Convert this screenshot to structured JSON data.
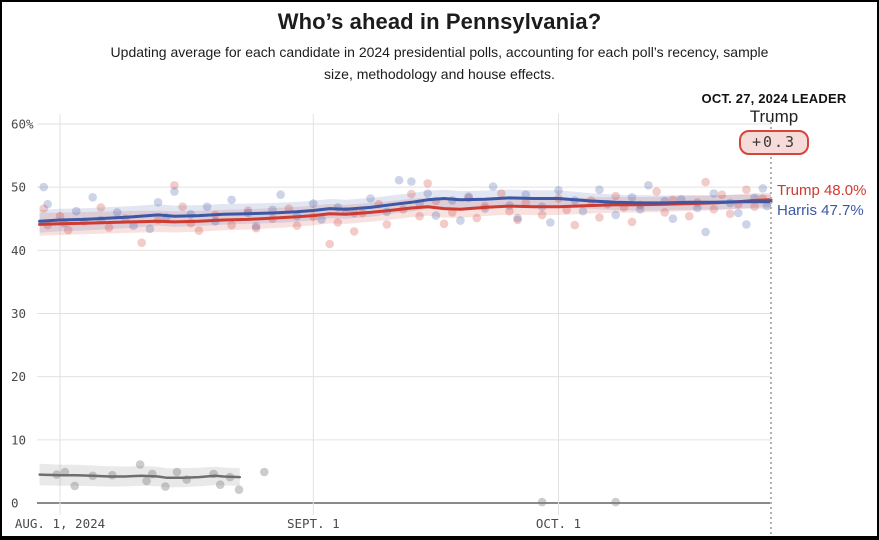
{
  "header": {
    "title": "Who’s ahead in Pennsylvania?",
    "subtitle": "Updating average for each candidate in 2024 presidential polls, accounting for each poll’s recency, sample size, methodology and house effects."
  },
  "leader": {
    "date_label": "OCT. 27, 2024 LEADER",
    "name": "Trump",
    "margin": "+0.3",
    "pill_background": "#f7dbd8",
    "pill_border": "#d6453d"
  },
  "end_labels": {
    "trump": "Trump 48.0%",
    "harris": "Harris 47.7%"
  },
  "colors": {
    "trump": "#cf3a31",
    "harris": "#3c57a5",
    "third_party": "#6e6e6e",
    "trump_dot": "#cf3a31",
    "harris_dot": "#3c57a5",
    "third_dot": "#808080",
    "grid": "#e2e2e2",
    "zero_axis": "#8a8a8a",
    "today_line": "#b0b0b0",
    "tick_text": "#4a4a4a"
  },
  "chart_data": {
    "type": "line",
    "title": "Who’s ahead in Pennsylvania?",
    "x_unit": "days since Aug. 1, 2024",
    "xlim": [
      -2.8,
      87
    ],
    "ylim": [
      0,
      62
    ],
    "grid": true,
    "end_marker_day": 87,
    "x_ticks": [
      {
        "day": 0,
        "label": "AUG. 1, 2024"
      },
      {
        "day": 31,
        "label": "SEPT. 1"
      },
      {
        "day": 61,
        "label": "OCT. 1"
      }
    ],
    "y_ticks": [
      {
        "v": 0,
        "label": "0"
      },
      {
        "v": 10,
        "label": "10"
      },
      {
        "v": 20,
        "label": "20"
      },
      {
        "v": 30,
        "label": "30"
      },
      {
        "v": 40,
        "label": "40"
      },
      {
        "v": 50,
        "label": "50"
      },
      {
        "v": 60,
        "label": "60%"
      }
    ],
    "series": [
      {
        "name": "Trump",
        "color": "#cf3a31",
        "band_start": 1.8,
        "band_end": 1.1,
        "width": 3,
        "points": [
          [
            -2.5,
            44.1
          ],
          [
            0,
            44.2
          ],
          [
            3,
            44.3
          ],
          [
            6,
            44.4
          ],
          [
            9,
            44.5
          ],
          [
            12,
            44.6
          ],
          [
            14,
            44.5
          ],
          [
            17,
            44.6
          ],
          [
            20,
            44.8
          ],
          [
            23,
            44.9
          ],
          [
            26,
            45.1
          ],
          [
            29,
            45.3
          ],
          [
            31,
            45.5
          ],
          [
            33,
            45.8
          ],
          [
            35,
            45.7
          ],
          [
            38,
            46.0
          ],
          [
            41,
            46.4
          ],
          [
            43,
            46.7
          ],
          [
            45,
            46.9
          ],
          [
            47,
            46.6
          ],
          [
            49,
            46.5
          ],
          [
            52,
            46.8
          ],
          [
            55,
            47.0
          ],
          [
            58,
            46.9
          ],
          [
            61,
            46.9
          ],
          [
            63,
            47.0
          ],
          [
            65,
            47.1
          ],
          [
            68,
            47.2
          ],
          [
            71,
            47.2
          ],
          [
            74,
            47.3
          ],
          [
            77,
            47.4
          ],
          [
            80,
            47.5
          ],
          [
            83,
            47.7
          ],
          [
            85,
            47.9
          ],
          [
            87,
            48.0
          ]
        ]
      },
      {
        "name": "Harris",
        "color": "#3c57a5",
        "band_start": 1.8,
        "band_end": 1.1,
        "width": 3,
        "points": [
          [
            -2.5,
            44.6
          ],
          [
            0,
            44.8
          ],
          [
            3,
            44.9
          ],
          [
            6,
            45.1
          ],
          [
            9,
            45.3
          ],
          [
            12,
            45.6
          ],
          [
            14,
            45.4
          ],
          [
            17,
            45.5
          ],
          [
            20,
            45.7
          ],
          [
            23,
            45.8
          ],
          [
            26,
            45.9
          ],
          [
            29,
            46.1
          ],
          [
            31,
            46.3
          ],
          [
            33,
            46.6
          ],
          [
            35,
            46.5
          ],
          [
            38,
            46.8
          ],
          [
            41,
            47.3
          ],
          [
            43,
            47.6
          ],
          [
            45,
            48.0
          ],
          [
            47,
            48.2
          ],
          [
            49,
            48.0
          ],
          [
            52,
            48.1
          ],
          [
            55,
            48.3
          ],
          [
            58,
            48.2
          ],
          [
            61,
            48.2
          ],
          [
            63,
            48.0
          ],
          [
            65,
            47.8
          ],
          [
            68,
            47.6
          ],
          [
            71,
            47.5
          ],
          [
            74,
            47.5
          ],
          [
            77,
            47.6
          ],
          [
            80,
            47.6
          ],
          [
            83,
            47.7
          ],
          [
            87,
            47.7
          ]
        ]
      },
      {
        "name": "Third party",
        "color": "#6e6e6e",
        "band_start": 1.7,
        "band_end": 1.4,
        "width": 2.5,
        "points": [
          [
            -2.5,
            4.5
          ],
          [
            0,
            4.4
          ],
          [
            2,
            4.4
          ],
          [
            4,
            4.3
          ],
          [
            6,
            4.2
          ],
          [
            8,
            4.2
          ],
          [
            10,
            4.3
          ],
          [
            12,
            4.2
          ],
          [
            13,
            4.0
          ],
          [
            15,
            4.0
          ],
          [
            17,
            4.1
          ],
          [
            19,
            4.3
          ],
          [
            20,
            4.2
          ],
          [
            22,
            4.1
          ]
        ]
      }
    ],
    "scatter": {
      "trump": [
        [
          -2,
          46.6
        ],
        [
          -1.5,
          44.0
        ],
        [
          0,
          45.4
        ],
        [
          1,
          43.2
        ],
        [
          3,
          44.6
        ],
        [
          5,
          46.8
        ],
        [
          6,
          43.6
        ],
        [
          8,
          45.0
        ],
        [
          10,
          41.2
        ],
        [
          12,
          44.8
        ],
        [
          14,
          50.3
        ],
        [
          15,
          46.9
        ],
        [
          16,
          44.3
        ],
        [
          17,
          43.1
        ],
        [
          19,
          45.6
        ],
        [
          21,
          44.0
        ],
        [
          23,
          46.3
        ],
        [
          24,
          43.5
        ],
        [
          26,
          45.0
        ],
        [
          28,
          46.6
        ],
        [
          29,
          43.9
        ],
        [
          31,
          45.3
        ],
        [
          33,
          41.0
        ],
        [
          34,
          44.4
        ],
        [
          35,
          46.2
        ],
        [
          36,
          43.0
        ],
        [
          37,
          45.9
        ],
        [
          39,
          47.3
        ],
        [
          40,
          44.1
        ],
        [
          42,
          46.5
        ],
        [
          43,
          48.9
        ],
        [
          44,
          45.4
        ],
        [
          45,
          50.6
        ],
        [
          46,
          47.8
        ],
        [
          47,
          44.2
        ],
        [
          48,
          46.0
        ],
        [
          50,
          48.3
        ],
        [
          51,
          45.1
        ],
        [
          52,
          47.0
        ],
        [
          54,
          49.0
        ],
        [
          55,
          46.2
        ],
        [
          56,
          44.8
        ],
        [
          57,
          47.5
        ],
        [
          59,
          45.6
        ],
        [
          61,
          48.2
        ],
        [
          62,
          46.4
        ],
        [
          63,
          44.0
        ],
        [
          65,
          47.9
        ],
        [
          66,
          45.2
        ],
        [
          68,
          48.6
        ],
        [
          69,
          46.8
        ],
        [
          70,
          44.5
        ],
        [
          71,
          47.2
        ],
        [
          73,
          49.3
        ],
        [
          74,
          46.0
        ],
        [
          75,
          48.0
        ],
        [
          77,
          45.4
        ],
        [
          78,
          47.6
        ],
        [
          79,
          50.8
        ],
        [
          80,
          46.5
        ],
        [
          81,
          48.8
        ],
        [
          82,
          45.8
        ],
        [
          83,
          47.3
        ],
        [
          84,
          49.6
        ],
        [
          85,
          46.9
        ],
        [
          86,
          48.2
        ]
      ],
      "harris": [
        [
          -2,
          50.0
        ],
        [
          -1.5,
          47.3
        ],
        [
          0.5,
          44.3
        ],
        [
          2,
          46.2
        ],
        [
          4,
          48.4
        ],
        [
          5,
          44.8
        ],
        [
          7,
          46.0
        ],
        [
          9,
          43.9
        ],
        [
          11,
          43.4
        ],
        [
          12,
          47.6
        ],
        [
          13,
          45.2
        ],
        [
          14,
          49.3
        ],
        [
          16,
          45.7
        ],
        [
          18,
          46.9
        ],
        [
          19,
          44.6
        ],
        [
          21,
          48.0
        ],
        [
          23,
          45.9
        ],
        [
          24,
          43.8
        ],
        [
          26,
          46.4
        ],
        [
          27,
          48.8
        ],
        [
          29,
          45.4
        ],
        [
          31,
          47.4
        ],
        [
          32,
          44.9
        ],
        [
          34,
          46.8
        ],
        [
          36,
          45.9
        ],
        [
          38,
          48.2
        ],
        [
          40,
          46.1
        ],
        [
          41.5,
          51.1
        ],
        [
          43,
          50.9
        ],
        [
          44,
          47.4
        ],
        [
          45,
          49.0
        ],
        [
          46,
          45.5
        ],
        [
          48,
          47.9
        ],
        [
          49,
          44.7
        ],
        [
          50,
          48.5
        ],
        [
          52,
          46.6
        ],
        [
          53,
          50.1
        ],
        [
          55,
          47.1
        ],
        [
          56,
          45.1
        ],
        [
          57,
          48.8
        ],
        [
          59,
          46.9
        ],
        [
          60,
          44.4
        ],
        [
          61,
          49.5
        ],
        [
          63,
          47.9
        ],
        [
          64,
          46.2
        ],
        [
          66,
          49.6
        ],
        [
          67,
          47.3
        ],
        [
          68,
          45.6
        ],
        [
          70,
          48.4
        ],
        [
          71,
          46.5
        ],
        [
          72,
          50.3
        ],
        [
          74,
          47.8
        ],
        [
          75,
          45.0
        ],
        [
          76,
          48.1
        ],
        [
          78,
          46.7
        ],
        [
          79,
          42.9
        ],
        [
          80,
          49.0
        ],
        [
          82,
          47.5
        ],
        [
          83,
          45.9
        ],
        [
          84,
          44.1
        ],
        [
          85,
          48.3
        ],
        [
          86,
          49.8
        ],
        [
          86.5,
          47.0
        ]
      ],
      "third": [
        [
          -0.4,
          4.5
        ],
        [
          0.6,
          4.9
        ],
        [
          1.8,
          2.7
        ],
        [
          4,
          4.3
        ],
        [
          6.4,
          4.4
        ],
        [
          9.8,
          6.1
        ],
        [
          10.6,
          3.5
        ],
        [
          11.3,
          4.6
        ],
        [
          12.9,
          2.6
        ],
        [
          14.3,
          4.9
        ],
        [
          15.5,
          3.7
        ],
        [
          18.8,
          4.6
        ],
        [
          19.6,
          2.9
        ],
        [
          20.8,
          4.1
        ],
        [
          21.9,
          2.1
        ],
        [
          25,
          4.9
        ],
        [
          59,
          0.15
        ],
        [
          68,
          0.15
        ]
      ]
    }
  }
}
